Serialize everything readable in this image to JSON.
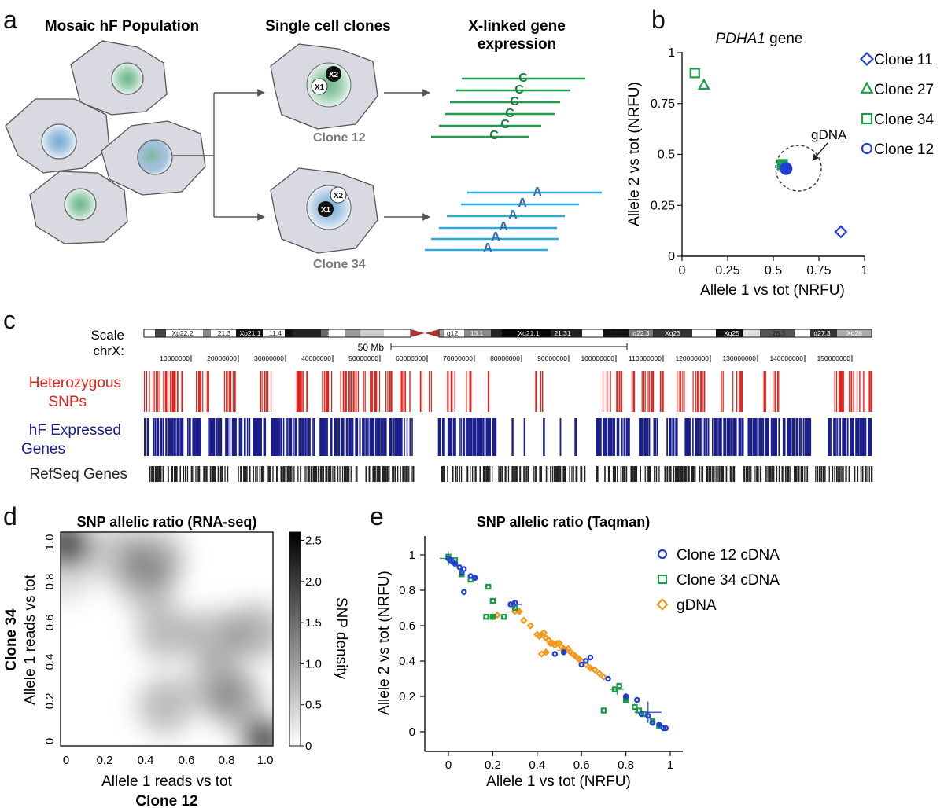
{
  "panel_letters": {
    "a": "a",
    "b": "b",
    "c": "c",
    "d": "d",
    "e": "e"
  },
  "panel_a": {
    "title_population": "Mosaic hF Population",
    "title_clones": "Single cell clones",
    "title_expression_line1": "X-linked gene",
    "title_expression_line2": "expression",
    "clone_top_label": "Clone 12",
    "clone_bottom_label": "Clone 34",
    "x1_label": "X1",
    "x2_label": "X2",
    "allele_green": "C",
    "allele_blue": "A",
    "colors": {
      "green": "#1a9e4a",
      "blue": "#2f86c6",
      "cyan": "#29abe2",
      "cell": "#d9d9e2"
    }
  },
  "panel_b": {
    "title_italic": "PDHA1",
    "title_rest": " gene",
    "xlabel": "Allele 1 vs tot (NRFU)",
    "ylabel": "Allele 2 vs tot (NRFU)",
    "annotation": "gDNA",
    "xticks": [
      "0",
      "0.25",
      "0.5",
      "0.75",
      "1"
    ],
    "yticks": [
      "0",
      "0.25",
      "0.5",
      "0.75",
      "1"
    ],
    "legend": [
      {
        "label": "Clone 11",
        "marker": "diamond",
        "color": "#1f3fd6"
      },
      {
        "label": "Clone 27",
        "marker": "triangle",
        "color": "#1a9e4a"
      },
      {
        "label": "Clone 34",
        "marker": "square",
        "color": "#1a9e4a"
      },
      {
        "label": "Clone 12",
        "marker": "circle",
        "color": "#1f3fd6"
      }
    ]
  },
  "panel_c": {
    "scale_label": "Scale",
    "chr_label": "chrX:",
    "scalebar_label": "50 Mb",
    "bands": [
      "Xp22.2",
      "21.3",
      "Xp21.1",
      "11.4",
      "11.3",
      "11.22",
      "q12",
      "13.1",
      "Xq21.1",
      "21.31",
      "22.1",
      "q22.3",
      "Xq23",
      "Xq24",
      "Xq25",
      "26.3",
      "q27.3",
      "Xq28"
    ],
    "coords": [
      "10000000",
      "20000000",
      "30000000",
      "40000000",
      "50000000",
      "60000000",
      "70000000",
      "80000000",
      "90000000",
      "100000000",
      "110000000",
      "120000000",
      "130000000",
      "140000000",
      "150000000"
    ],
    "tracks": {
      "snps": {
        "line1": "Heterozygous",
        "line2": "SNPs",
        "color": "#e0231c"
      },
      "genes": {
        "line1": "hF Expressed",
        "line2": "Genes",
        "color": "#1b1f8c"
      },
      "refseq": {
        "line1": "RefSeq Genes",
        "color": "#222222"
      }
    }
  },
  "panel_d": {
    "title": "SNP allelic ratio (RNA-seq)",
    "xlabel": "Allele 1 reads vs tot",
    "xlabel_bold": "Clone 12",
    "ylabel": "Allele 1 reads vs tot",
    "ylabel_bold": "Clone 34",
    "xticks": [
      "0",
      "0.2",
      "0.4",
      "0.6",
      "0.8",
      "1.0"
    ],
    "yticks": [
      "0",
      "0.2",
      "0.4",
      "0.6",
      "0.8",
      "1.0"
    ],
    "colorbar_label": "SNP density",
    "colorbar_ticks": [
      "0",
      "0.5",
      "1.0",
      "1.5",
      "2.0",
      "2.5"
    ]
  },
  "panel_e": {
    "title": "SNP allelic ratio (Taqman)",
    "xlabel": "Allele 1 vs tot (NRFU)",
    "ylabel": "Allele 2 vs tot (NRFU)",
    "xticks": [
      "0",
      "0.2",
      "0.4",
      "0.6",
      "0.8",
      "1"
    ],
    "yticks": [
      "0",
      "0.2",
      "0.4",
      "0.6",
      "0.8",
      "1"
    ],
    "legend": [
      {
        "label": "Clone 12 cDNA",
        "marker": "circle",
        "color": "#1f3fd6"
      },
      {
        "label": "Clone 34  cDNA",
        "marker": "square",
        "color": "#1a9e4a"
      },
      {
        "label": "gDNA",
        "marker": "diamond",
        "color": "#f39a1e"
      }
    ]
  },
  "chart_data": [
    {
      "type": "scatter",
      "panel": "b",
      "title": "PDHA1 gene",
      "xlabel": "Allele 1 vs tot (NRFU)",
      "ylabel": "Allele 2 vs tot (NRFU)",
      "xlim": [
        0,
        1
      ],
      "ylim": [
        0,
        1
      ],
      "series": [
        {
          "name": "Clone 11",
          "points": [
            [
              0.87,
              0.12
            ]
          ]
        },
        {
          "name": "Clone 27",
          "points": [
            [
              0.12,
              0.84
            ]
          ]
        },
        {
          "name": "Clone 34",
          "points": [
            [
              0.07,
              0.9
            ]
          ]
        },
        {
          "name": "Clone 12",
          "points": [
            [
              0.56,
              0.44
            ]
          ]
        },
        {
          "name": "gDNA",
          "points": [
            [
              0.55,
              0.45
            ],
            [
              0.57,
              0.43
            ]
          ]
        }
      ]
    },
    {
      "type": "heatmap",
      "panel": "d",
      "title": "SNP allelic ratio (RNA-seq)",
      "xlabel": "Allele 1 reads vs tot (Clone 12)",
      "ylabel": "Allele 1 reads vs tot (Clone 34)",
      "xlim": [
        0,
        1
      ],
      "ylim": [
        0,
        1
      ],
      "colorbar": {
        "label": "SNP density",
        "range": [
          0,
          2.6
        ]
      },
      "density_peaks": [
        {
          "x": 0.0,
          "y": 1.0,
          "density": 2.6
        },
        {
          "x": 0.25,
          "y": 0.95,
          "density": 0.8
        },
        {
          "x": 0.45,
          "y": 0.92,
          "density": 1.0
        },
        {
          "x": 0.0,
          "y": 0.85,
          "density": 0.5
        },
        {
          "x": 0.4,
          "y": 0.8,
          "density": 0.9
        },
        {
          "x": 0.5,
          "y": 0.55,
          "density": 0.9
        },
        {
          "x": 0.75,
          "y": 0.52,
          "density": 0.9
        },
        {
          "x": 0.95,
          "y": 0.55,
          "density": 1.0
        },
        {
          "x": 0.75,
          "y": 0.3,
          "density": 0.8
        },
        {
          "x": 0.5,
          "y": 0.18,
          "density": 0.9
        },
        {
          "x": 0.85,
          "y": 0.2,
          "density": 1.1
        },
        {
          "x": 1.0,
          "y": 0.0,
          "density": 2.5
        }
      ]
    },
    {
      "type": "scatter",
      "panel": "e",
      "title": "SNP allelic ratio (Taqman)",
      "xlabel": "Allele 1 vs tot (NRFU)",
      "ylabel": "Allele 2 vs tot (NRFU)",
      "xlim": [
        0,
        1
      ],
      "ylim": [
        0,
        1
      ],
      "series": [
        {
          "name": "Clone 12 cDNA",
          "points": [
            [
              0.0,
              0.98
            ],
            [
              0.01,
              0.97
            ],
            [
              0.02,
              0.96
            ],
            [
              0.03,
              0.95
            ],
            [
              0.05,
              0.93
            ],
            [
              0.06,
              0.9
            ],
            [
              0.07,
              0.92
            ],
            [
              0.1,
              0.88
            ],
            [
              0.12,
              0.87
            ],
            [
              0.07,
              0.79
            ],
            [
              0.28,
              0.72
            ],
            [
              0.3,
              0.73
            ],
            [
              0.48,
              0.44
            ],
            [
              0.52,
              0.45
            ],
            [
              0.6,
              0.38
            ],
            [
              0.62,
              0.4
            ],
            [
              0.64,
              0.42
            ],
            [
              0.72,
              0.3
            ],
            [
              0.8,
              0.2
            ],
            [
              0.85,
              0.18
            ],
            [
              0.87,
              0.1
            ],
            [
              0.9,
              0.09
            ],
            [
              0.92,
              0.05
            ],
            [
              0.95,
              0.04
            ],
            [
              0.97,
              0.02
            ],
            [
              0.98,
              0.02
            ]
          ]
        },
        {
          "name": "Clone 34 cDNA",
          "points": [
            [
              0.0,
              0.99
            ],
            [
              0.01,
              0.97
            ],
            [
              0.03,
              0.97
            ],
            [
              0.06,
              0.89
            ],
            [
              0.1,
              0.86
            ],
            [
              0.18,
              0.82
            ],
            [
              0.2,
              0.74
            ],
            [
              0.17,
              0.65
            ],
            [
              0.2,
              0.65
            ],
            [
              0.25,
              0.65
            ],
            [
              0.3,
              0.7
            ],
            [
              0.75,
              0.24
            ],
            [
              0.77,
              0.26
            ],
            [
              0.8,
              0.18
            ],
            [
              0.84,
              0.14
            ],
            [
              0.86,
              0.12
            ],
            [
              0.88,
              0.1
            ],
            [
              0.92,
              0.06
            ],
            [
              0.95,
              0.03
            ],
            [
              0.7,
              0.12
            ]
          ]
        },
        {
          "name": "gDNA",
          "points": [
            [
              0.2,
              0.65
            ],
            [
              0.22,
              0.66
            ],
            [
              0.3,
              0.68
            ],
            [
              0.32,
              0.68
            ],
            [
              0.34,
              0.63
            ],
            [
              0.37,
              0.6
            ],
            [
              0.4,
              0.55
            ],
            [
              0.41,
              0.54
            ],
            [
              0.42,
              0.55
            ],
            [
              0.43,
              0.56
            ],
            [
              0.44,
              0.53
            ],
            [
              0.45,
              0.52
            ],
            [
              0.46,
              0.5
            ],
            [
              0.47,
              0.5
            ],
            [
              0.48,
              0.49
            ],
            [
              0.49,
              0.5
            ],
            [
              0.5,
              0.5
            ],
            [
              0.51,
              0.48
            ],
            [
              0.52,
              0.47
            ],
            [
              0.53,
              0.46
            ],
            [
              0.54,
              0.47
            ],
            [
              0.55,
              0.45
            ],
            [
              0.56,
              0.44
            ],
            [
              0.57,
              0.43
            ],
            [
              0.58,
              0.42
            ],
            [
              0.59,
              0.41
            ],
            [
              0.6,
              0.4
            ],
            [
              0.62,
              0.38
            ],
            [
              0.64,
              0.36
            ],
            [
              0.66,
              0.35
            ],
            [
              0.68,
              0.33
            ],
            [
              0.7,
              0.31
            ],
            [
              0.42,
              0.44
            ],
            [
              0.44,
              0.45
            ]
          ]
        }
      ]
    }
  ]
}
